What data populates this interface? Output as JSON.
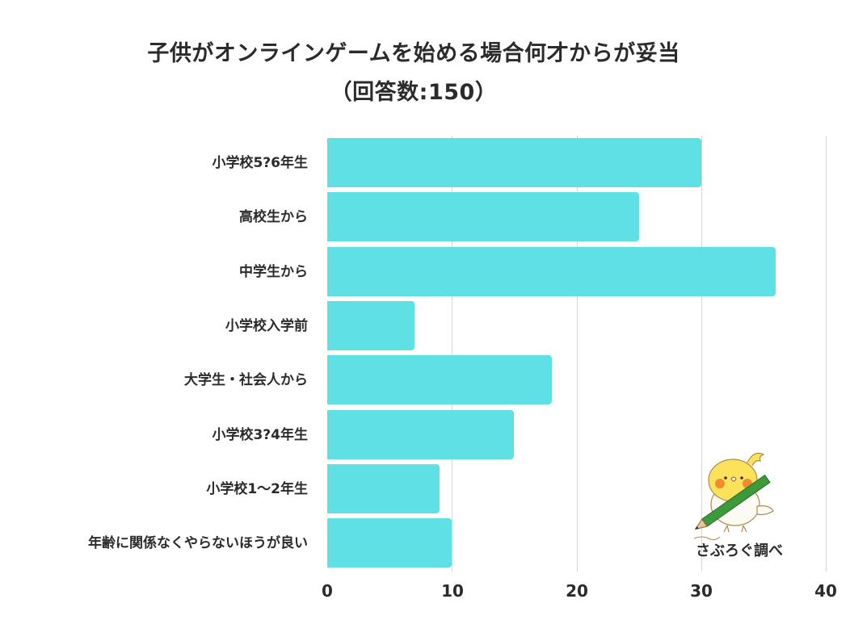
{
  "title": {
    "line1": "子供がオンラインゲームを始める場合何才からが妥当",
    "line2": "（回答数:150）"
  },
  "colors": {
    "bar": "#5ee0e4",
    "gridline": "#d6d6d6",
    "text": "#2b2b2b"
  },
  "axis": {
    "ticks": [
      "0",
      "10",
      "20",
      "30",
      "40"
    ]
  },
  "credit": {
    "label": "さぶろぐ調べ",
    "mascot_icon": "bird-with-pencil-icon"
  },
  "chart_data": {
    "type": "bar",
    "orientation": "horizontal",
    "title": "子供がオンラインゲームを始める場合何才からが妥当（回答数:150）",
    "xlabel": "",
    "ylabel": "",
    "xlim": [
      0,
      40
    ],
    "x_ticks": [
      0,
      10,
      20,
      30,
      40
    ],
    "grid": true,
    "legend": null,
    "categories": [
      "小学校5?6年生",
      "高校生から",
      "中学生から",
      "小学校入学前",
      "大学生・社会人から",
      "小学校3?4年生",
      "小学校1～2年生",
      "年齢に関係なくやらないほうが良い"
    ],
    "values": [
      30,
      25,
      36,
      7,
      18,
      15,
      9,
      10
    ],
    "annotations": [
      "さぶろぐ調べ"
    ]
  }
}
